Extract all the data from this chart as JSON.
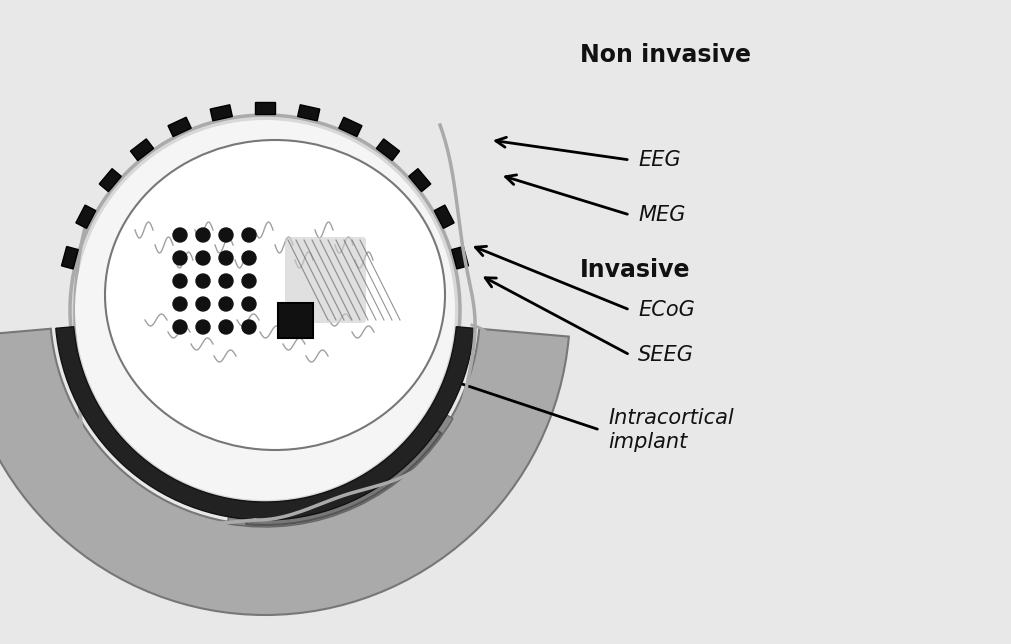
{
  "bg_color": "#e8e8e8",
  "labels": {
    "non_invasive": "Non invasive",
    "invasive": "Invasive",
    "eeg": "EEG",
    "meg": "MEG",
    "ecog": "ECoG",
    "seeg": "SEEG",
    "intracortical": "Intracortical\nimplant"
  },
  "meg_color": "#aaaaaa",
  "meg_dark_color": "#888888",
  "skull_bg": "#c0c0c0",
  "head_fill": "#d8d8d8",
  "brain_fill": "#f0f0f0",
  "electrode_color": "#111111",
  "arrow_color": "#111111",
  "label_color": "#111111"
}
